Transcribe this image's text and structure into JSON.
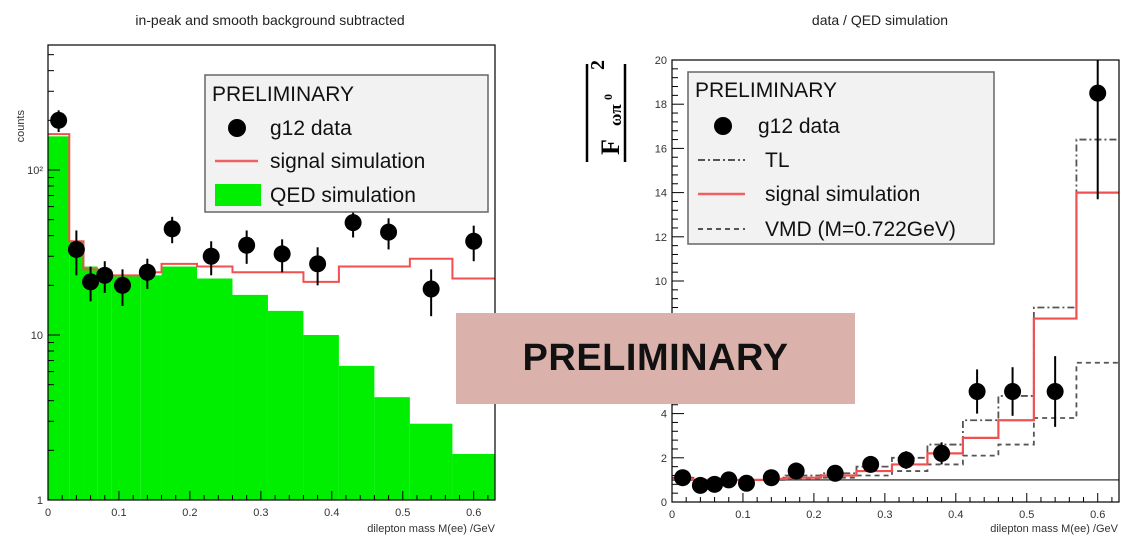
{
  "overlay": {
    "label": "PRELIMINARY"
  },
  "chart_data": [
    {
      "type": "histogram",
      "title": "in-peak and smooth background subtracted",
      "xlabel": "dilepton mass M(ee) /GeV",
      "ylabel": "counts",
      "xlim": [
        0,
        0.63
      ],
      "ylim": [
        1,
        500
      ],
      "yscale": "log",
      "xticks": [
        "0",
        "0.1",
        "0.2",
        "0.3",
        "0.4",
        "0.5",
        "0.6"
      ],
      "yticks": [
        "1",
        "10",
        "10²"
      ],
      "legend": {
        "placement": "top-right",
        "header": "PRELIMINARY",
        "entries": [
          "g12 data",
          "signal simulation",
          "QED simulation"
        ]
      },
      "qed_simulation": {
        "edges": [
          0,
          0.03,
          0.05,
          0.07,
          0.09,
          0.13,
          0.16,
          0.21,
          0.26,
          0.31,
          0.36,
          0.41,
          0.46,
          0.51,
          0.57,
          0.63
        ],
        "values": [
          160,
          37,
          26,
          25,
          23,
          23,
          26,
          22,
          17.5,
          14,
          10,
          6.5,
          4.2,
          2.9,
          1.9
        ]
      },
      "signal_simulation": {
        "edges": [
          0,
          0.03,
          0.05,
          0.07,
          0.09,
          0.13,
          0.16,
          0.21,
          0.26,
          0.31,
          0.36,
          0.41,
          0.46,
          0.51,
          0.57,
          0.63
        ],
        "values": [
          165,
          37,
          25,
          24,
          23,
          24,
          27,
          26,
          24,
          24,
          21,
          26,
          26,
          29,
          22
        ]
      },
      "g12_data": {
        "x": [
          0.015,
          0.04,
          0.06,
          0.08,
          0.105,
          0.14,
          0.175,
          0.23,
          0.28,
          0.33,
          0.38,
          0.43,
          0.48,
          0.54,
          0.6
        ],
        "y": [
          200,
          33,
          21,
          23,
          20,
          24,
          44,
          30,
          35,
          31,
          27,
          48,
          42,
          19,
          37
        ],
        "err": [
          30,
          10,
          5,
          5,
          5,
          5,
          8,
          7,
          8,
          7,
          7,
          9,
          9,
          6,
          9
        ]
      }
    },
    {
      "type": "histogram",
      "title": "data / QED simulation",
      "xlabel": "dilepton mass M(ee) /GeV",
      "ylabel_base": "F",
      "ylabel_sub": "ωπ",
      "ylabel_sup": "0",
      "ylabel_exp": "2",
      "xlim": [
        0,
        0.63
      ],
      "ylim": [
        0,
        20
      ],
      "yscale": "linear",
      "xticks": [
        "0",
        "0.1",
        "0.2",
        "0.3",
        "0.4",
        "0.5",
        "0.6"
      ],
      "yticks": [
        "0",
        "2",
        "4",
        "6",
        "8",
        "10",
        "12",
        "14",
        "16",
        "18",
        "20"
      ],
      "legend": {
        "placement": "top-left",
        "header": "PRELIMINARY",
        "entries": [
          "g12 data",
          "TL",
          "signal simulation",
          "VMD (M=0.722GeV)"
        ]
      },
      "tl_line": 1.0,
      "signal_simulation": {
        "edges": [
          0,
          0.03,
          0.05,
          0.07,
          0.09,
          0.13,
          0.16,
          0.21,
          0.26,
          0.31,
          0.36,
          0.41,
          0.46,
          0.51,
          0.57,
          0.63
        ],
        "values": [
          1.05,
          1.0,
          1.0,
          1.0,
          1.0,
          1.05,
          1.1,
          1.2,
          1.4,
          1.7,
          2.2,
          2.9,
          3.7,
          8.3,
          14
        ]
      },
      "tl_dashdot": {
        "edges": [
          0,
          0.03,
          0.05,
          0.07,
          0.09,
          0.13,
          0.16,
          0.21,
          0.26,
          0.31,
          0.36,
          0.41,
          0.46,
          0.51,
          0.57,
          0.63
        ],
        "values": [
          1.1,
          1.0,
          1.0,
          1.0,
          1.0,
          1.1,
          1.2,
          1.3,
          1.6,
          2.0,
          2.6,
          3.7,
          4.8,
          8.8,
          16.4
        ]
      },
      "vmd_dashed": {
        "edges": [
          0,
          0.03,
          0.05,
          0.07,
          0.09,
          0.13,
          0.16,
          0.21,
          0.26,
          0.31,
          0.36,
          0.41,
          0.46,
          0.51,
          0.57,
          0.63
        ],
        "values": [
          1.0,
          1.0,
          1.0,
          1.0,
          1.0,
          1.0,
          1.05,
          1.1,
          1.2,
          1.4,
          1.7,
          2.1,
          2.6,
          3.8,
          6.3
        ]
      },
      "g12_data": {
        "x": [
          0.015,
          0.04,
          0.06,
          0.08,
          0.105,
          0.14,
          0.175,
          0.23,
          0.28,
          0.33,
          0.38,
          0.43,
          0.48,
          0.54,
          0.6
        ],
        "y": [
          1.1,
          0.75,
          0.8,
          1.0,
          0.85,
          1.1,
          1.4,
          1.3,
          1.7,
          1.9,
          2.2,
          5.0,
          5.0,
          5.0,
          18.5
        ],
        "err": [
          0.25,
          0.2,
          0.2,
          0.25,
          0.2,
          0.25,
          0.3,
          0.3,
          0.35,
          0.4,
          0.5,
          1.0,
          1.1,
          1.6,
          4.8
        ]
      }
    }
  ]
}
